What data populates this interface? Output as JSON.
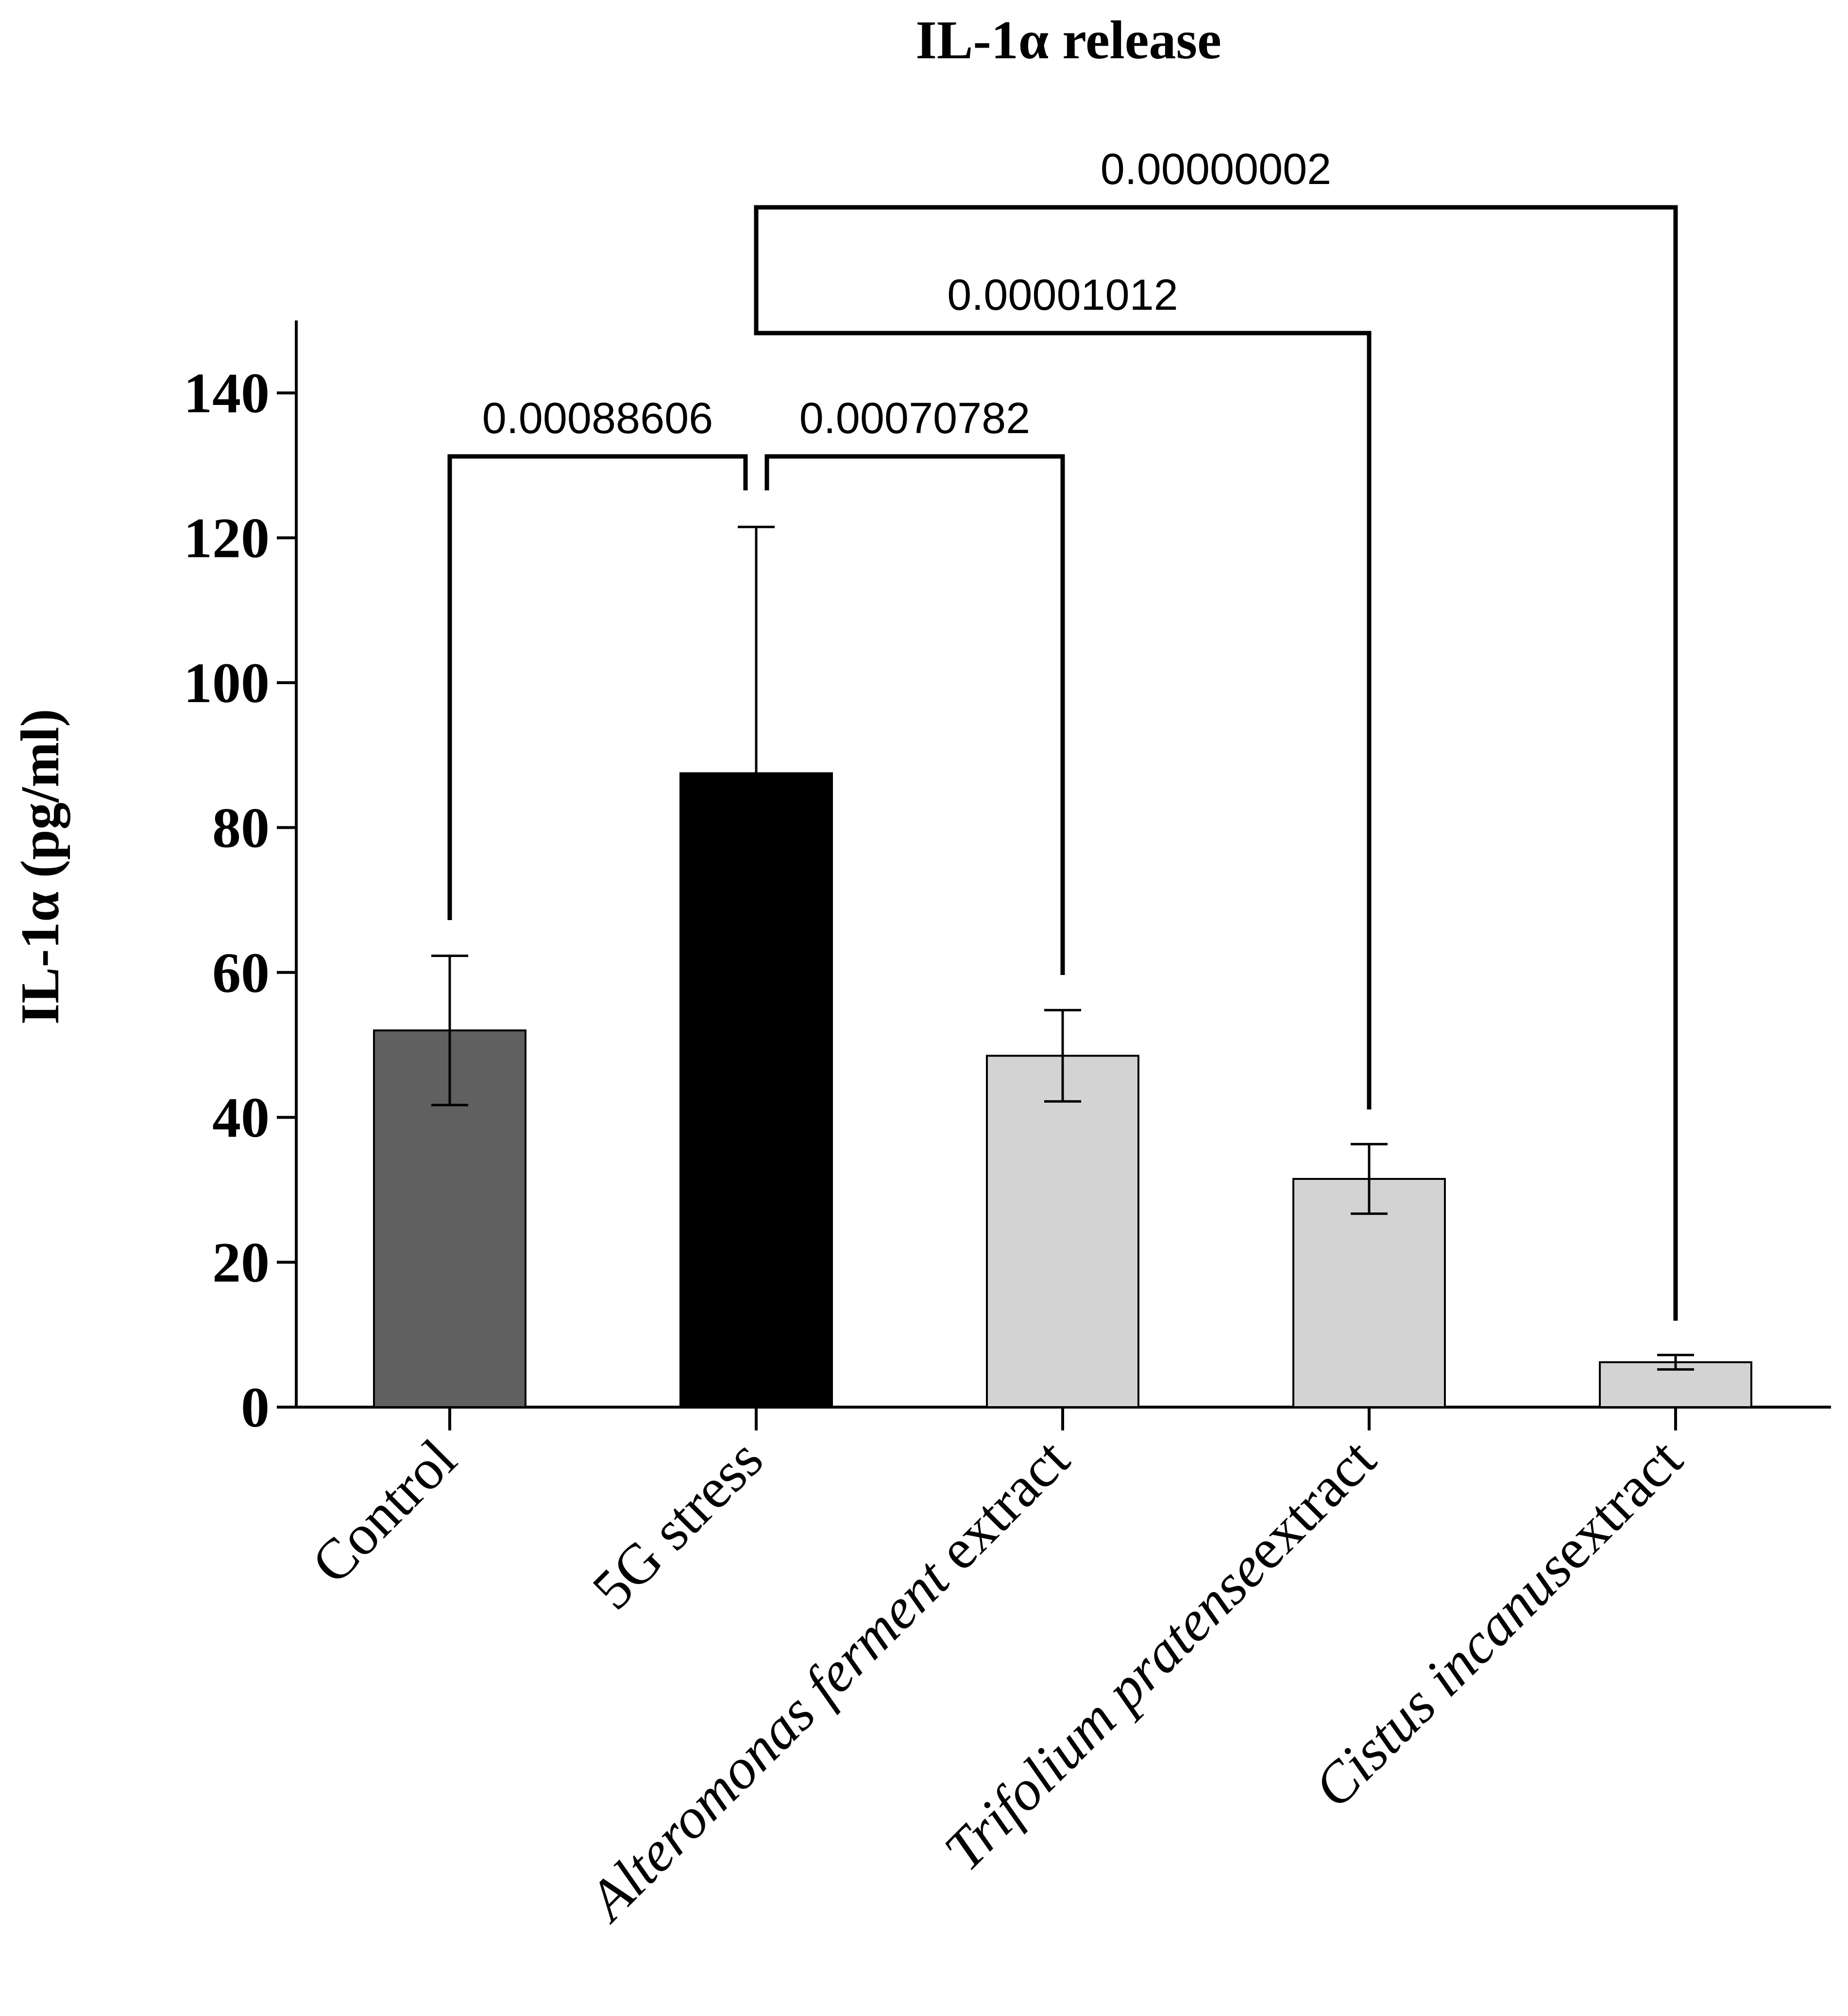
{
  "chart_data": {
    "type": "bar",
    "title": "IL-1α release",
    "xlabel": "",
    "ylabel": "IL-1α (pg/ml)",
    "ylim": [
      0,
      150
    ],
    "yticks": [
      0,
      20,
      40,
      60,
      80,
      100,
      120,
      140
    ],
    "ytick_labels": [
      "0",
      "20",
      "40",
      "60",
      "80",
      "100",
      "120",
      "140"
    ],
    "grid": false,
    "categories": [
      {
        "parts": [
          {
            "text": "Control",
            "italic": false
          }
        ]
      },
      {
        "parts": [
          {
            "text": "5G stress",
            "italic": false
          }
        ]
      },
      {
        "parts": [
          {
            "text": "Alteromonas ferment",
            "italic": true
          },
          {
            "text": " extract",
            "italic": false
          }
        ]
      },
      {
        "parts": [
          {
            "text": "Trifolium pratense",
            "italic": true
          },
          {
            "text": "extract",
            "italic": false
          }
        ]
      },
      {
        "parts": [
          {
            "text": "Cistus incanus",
            "italic": true
          },
          {
            "text": "extract",
            "italic": false
          }
        ]
      }
    ],
    "values": [
      52,
      87.5,
      48.5,
      31.5,
      6.2
    ],
    "errors": [
      10.3,
      34,
      6.3,
      4.8,
      1.0
    ],
    "bar_colors": [
      "#606060",
      "#000000",
      "#d3d3d3",
      "#d3d3d3",
      "#d3d3d3"
    ],
    "comparisons": [
      {
        "from": 0,
        "to": 1,
        "label": "0.00088606"
      },
      {
        "from": 1,
        "to": 2,
        "label": "0.00070782"
      },
      {
        "from": 1,
        "to": 3,
        "label": "0.00001012"
      },
      {
        "from": 1,
        "to": 4,
        "label": "0.00000002"
      }
    ]
  }
}
